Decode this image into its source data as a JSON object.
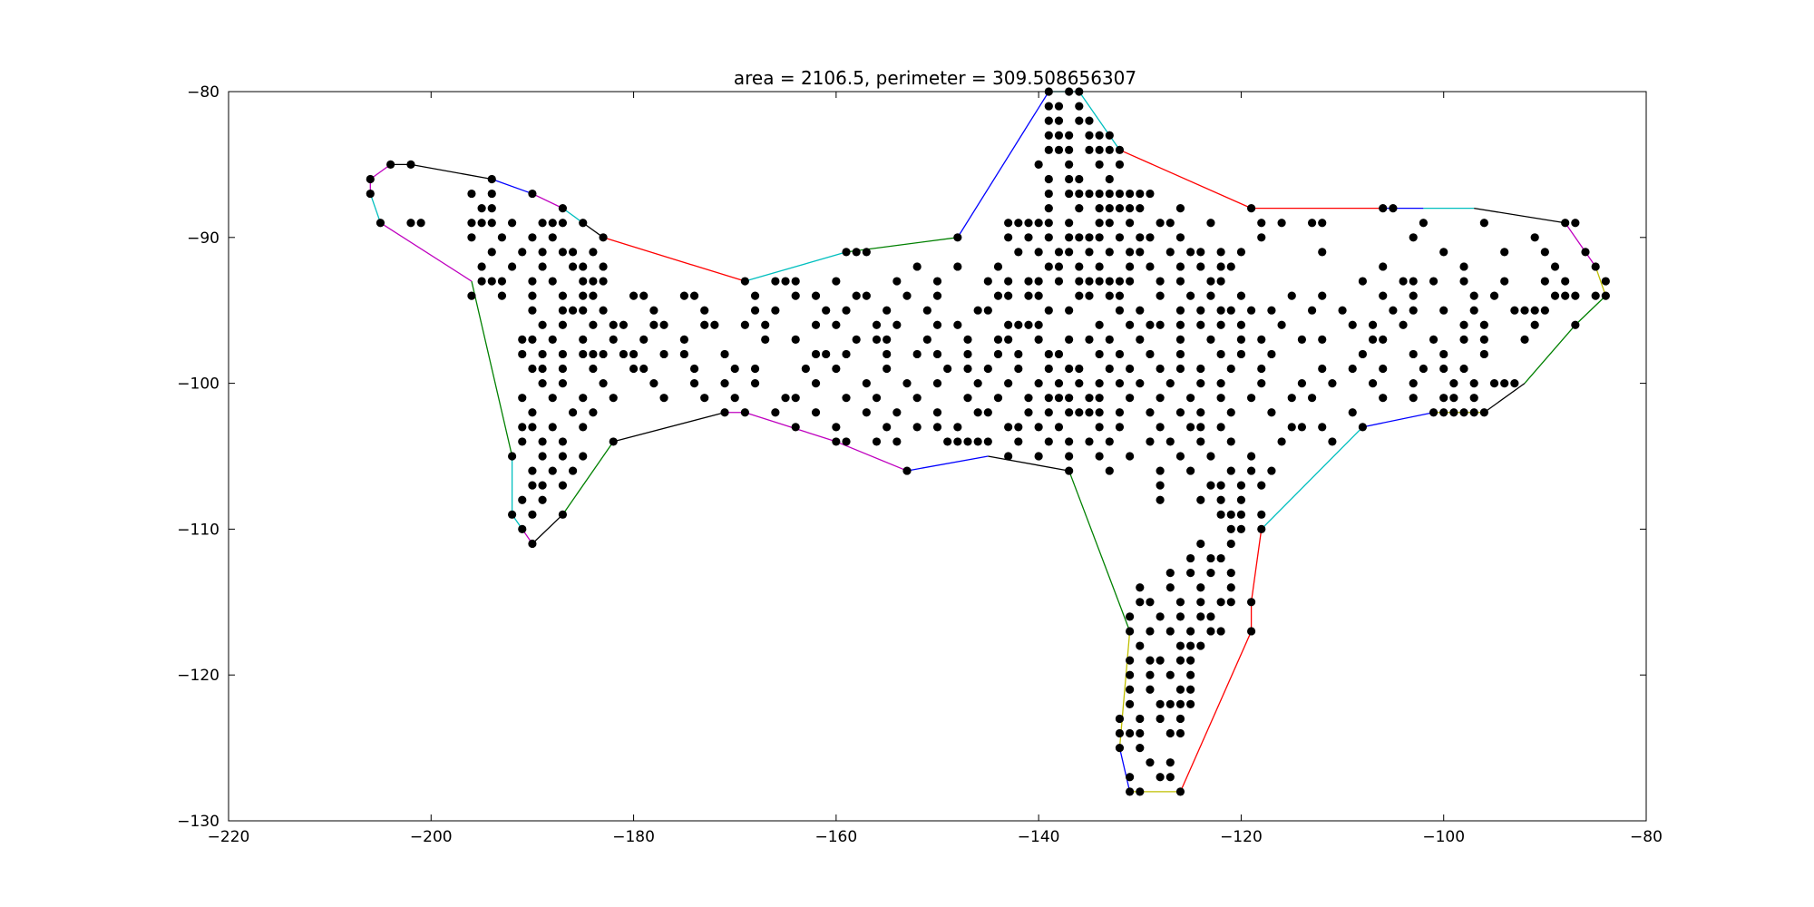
{
  "chart_data": {
    "type": "scatter",
    "title": "area = 2106.5, perimeter = 309.508656307",
    "xlabel": "",
    "ylabel": "",
    "xlim": [
      -220,
      -80
    ],
    "ylim": [
      -130,
      -80
    ],
    "x_ticks": [
      -220,
      -200,
      -180,
      -160,
      -140,
      -120,
      -100,
      -80
    ],
    "y_ticks": [
      -80,
      -90,
      -100,
      -110,
      -120,
      -130
    ],
    "x_tick_labels": [
      "−220",
      "−200",
      "−180",
      "−160",
      "−140",
      "−120",
      "−100",
      "−80"
    ],
    "y_tick_labels": [
      "−80",
      "−90",
      "−100",
      "−110",
      "−120",
      "−130"
    ],
    "grid": false,
    "hull": {
      "points": [
        [
          -204,
          -85
        ],
        [
          -202,
          -85
        ],
        [
          -194,
          -86
        ],
        [
          -190,
          -87
        ],
        [
          -187,
          -88
        ],
        [
          -185,
          -89
        ],
        [
          -183,
          -90
        ],
        [
          -169,
          -93
        ],
        [
          -159,
          -91
        ],
        [
          -148,
          -90
        ],
        [
          -139,
          -80
        ],
        [
          -136,
          -80
        ],
        [
          -132,
          -84
        ],
        [
          -119,
          -88
        ],
        [
          -106,
          -88
        ],
        [
          -102,
          -88
        ],
        [
          -97,
          -88
        ],
        [
          -88,
          -89
        ],
        [
          -85,
          -92
        ],
        [
          -84,
          -94
        ],
        [
          -87,
          -96
        ],
        [
          -92,
          -100
        ],
        [
          -96,
          -102
        ],
        [
          -101,
          -102
        ],
        [
          -108,
          -103
        ],
        [
          -118,
          -110
        ],
        [
          -119,
          -115
        ],
        [
          -119,
          -117
        ],
        [
          -126,
          -128
        ],
        [
          -130,
          -128
        ],
        [
          -131,
          -128
        ],
        [
          -132,
          -125
        ],
        [
          -131,
          -117
        ],
        [
          -137,
          -106
        ],
        [
          -145,
          -105
        ],
        [
          -153,
          -106
        ],
        [
          -160,
          -104
        ],
        [
          -169,
          -102
        ],
        [
          -171,
          -102
        ],
        [
          -182,
          -104
        ],
        [
          -187,
          -109
        ],
        [
          -190,
          -111
        ],
        [
          -191,
          -110
        ],
        [
          -192,
          -109
        ],
        [
          -192,
          -105
        ],
        [
          -196,
          -93
        ],
        [
          -205,
          -89
        ],
        [
          -206,
          -87
        ],
        [
          -206,
          -86
        ],
        [
          -204,
          -85
        ]
      ],
      "colors": [
        "#000000",
        "#000000",
        "#0000ff",
        "#bf00bf",
        "#00bfbf",
        "#000000",
        "#ff0000",
        "#00bfbf",
        "#008000",
        "#0000ff",
        "#00bfbf",
        "#00bfbf",
        "#ff0000",
        "#ff0000",
        "#0000ff",
        "#00bfbf",
        "#000000",
        "#bf00bf",
        "#bfbf00",
        "#008000",
        "#008000",
        "#000000",
        "#bfbf00",
        "#0000ff",
        "#00bfbf",
        "#ff0000",
        "#ff0000",
        "#ff0000",
        "#bfbf00",
        "#bfbf00",
        "#0000ff",
        "#bfbf00",
        "#008000",
        "#000000",
        "#0000ff",
        "#bf00bf",
        "#bf00bf",
        "#bf00bf",
        "#000000",
        "#008000",
        "#000000",
        "#bf00bf",
        "#00bfbf",
        "#00bfbf",
        "#008000",
        "#bf00bf",
        "#00bfbf",
        "#bf00bf",
        "#bf00bf"
      ]
    },
    "points_by_row": [
      {
        "y": -80,
        "x": [
          -139,
          -137,
          -136
        ]
      },
      {
        "y": -81,
        "x": [
          -139,
          -138,
          -136
        ]
      },
      {
        "y": -82,
        "x": [
          -139,
          -138,
          -136,
          -135
        ]
      },
      {
        "y": -83,
        "x": [
          -139,
          -138,
          -137,
          -135,
          -134,
          -133
        ]
      },
      {
        "y": -84,
        "x": [
          -139,
          -138,
          -137,
          -135,
          -134,
          -133,
          -132
        ]
      },
      {
        "y": -85,
        "x": [
          -204,
          -202,
          -140,
          -137,
          -134,
          -132
        ]
      },
      {
        "y": -86,
        "x": [
          -206,
          -194,
          -139,
          -137,
          -136,
          -133
        ]
      },
      {
        "y": -87,
        "x": [
          -206,
          -196,
          -194,
          -190,
          -139,
          -137,
          -136,
          -135,
          -134,
          -133,
          -132,
          -131,
          -130,
          -129
        ]
      },
      {
        "y": -88,
        "x": [
          -195,
          -194,
          -187,
          -139,
          -136,
          -134,
          -133,
          -132,
          -131,
          -130,
          -126,
          -119,
          -106,
          -105
        ]
      },
      {
        "y": -89,
        "x": [
          -205,
          -202,
          -201,
          -196,
          -195,
          -194,
          -192,
          -189,
          -188,
          -187,
          -185,
          -143,
          -142,
          -141,
          -140,
          -139,
          -137,
          -134,
          -133,
          -131,
          -128,
          -127,
          -123,
          -118,
          -116,
          -113,
          -112,
          -102,
          -96,
          -88,
          -87
        ]
      },
      {
        "y": -90,
        "x": [
          -196,
          -193,
          -190,
          -188,
          -183,
          -148,
          -143,
          -141,
          -139,
          -137,
          -136,
          -135,
          -134,
          -132,
          -130,
          -129,
          -126,
          -118,
          -103,
          -91
        ]
      },
      {
        "y": -91,
        "x": [
          -194,
          -191,
          -189,
          -187,
          -186,
          -184,
          -159,
          -158,
          -157,
          -142,
          -140,
          -138,
          -137,
          -135,
          -133,
          -131,
          -130,
          -127,
          -125,
          -124,
          -122,
          -120,
          -112,
          -100,
          -94,
          -90,
          -86
        ]
      },
      {
        "y": -92,
        "x": [
          -195,
          -192,
          -189,
          -186,
          -185,
          -183,
          -152,
          -148,
          -144,
          -139,
          -138,
          -136,
          -134,
          -131,
          -129,
          -126,
          -124,
          -122,
          -121,
          -106,
          -98,
          -89,
          -85
        ]
      },
      {
        "y": -93,
        "x": [
          -195,
          -194,
          -193,
          -190,
          -188,
          -185,
          -184,
          -183,
          -169,
          -166,
          -165,
          -164,
          -160,
          -154,
          -150,
          -145,
          -143,
          -141,
          -140,
          -138,
          -136,
          -135,
          -134,
          -133,
          -132,
          -131,
          -128,
          -126,
          -123,
          -122,
          -108,
          -104,
          -103,
          -101,
          -98,
          -94,
          -90,
          -88,
          -84
        ]
      },
      {
        "y": -94,
        "x": [
          -196,
          -193,
          -190,
          -187,
          -185,
          -184,
          -180,
          -179,
          -175,
          -174,
          -168,
          -164,
          -162,
          -158,
          -157,
          -153,
          -150,
          -144,
          -143,
          -141,
          -140,
          -136,
          -135,
          -133,
          -132,
          -128,
          -125,
          -123,
          -120,
          -115,
          -112,
          -106,
          -103,
          -97,
          -95,
          -89,
          -88,
          -87,
          -85,
          -84
        ]
      },
      {
        "y": -95,
        "x": [
          -190,
          -187,
          -186,
          -185,
          -183,
          -178,
          -173,
          -168,
          -166,
          -161,
          -159,
          -155,
          -151,
          -146,
          -145,
          -139,
          -137,
          -132,
          -130,
          -126,
          -124,
          -122,
          -121,
          -119,
          -117,
          -113,
          -110,
          -105,
          -103,
          -100,
          -97,
          -93,
          -92,
          -91,
          -90
        ]
      },
      {
        "y": -96,
        "x": [
          -189,
          -187,
          -184,
          -182,
          -181,
          -178,
          -177,
          -173,
          -172,
          -169,
          -167,
          -162,
          -160,
          -156,
          -154,
          -150,
          -148,
          -143,
          -142,
          -141,
          -140,
          -134,
          -131,
          -129,
          -128,
          -126,
          -124,
          -122,
          -120,
          -116,
          -109,
          -107,
          -104,
          -98,
          -96,
          -91,
          -87
        ]
      },
      {
        "y": -97,
        "x": [
          -191,
          -190,
          -188,
          -185,
          -182,
          -179,
          -175,
          -167,
          -164,
          -158,
          -156,
          -155,
          -151,
          -147,
          -144,
          -143,
          -140,
          -137,
          -135,
          -133,
          -130,
          -126,
          -123,
          -120,
          -118,
          -114,
          -112,
          -107,
          -106,
          -101,
          -98,
          -96,
          -92
        ]
      },
      {
        "y": -98,
        "x": [
          -191,
          -189,
          -187,
          -185,
          -184,
          -183,
          -181,
          -180,
          -177,
          -175,
          -171,
          -162,
          -161,
          -159,
          -155,
          -152,
          -150,
          -147,
          -144,
          -142,
          -139,
          -138,
          -134,
          -132,
          -129,
          -126,
          -122,
          -120,
          -117,
          -108,
          -103,
          -100,
          -96
        ]
      },
      {
        "y": -99,
        "x": [
          -190,
          -189,
          -187,
          -184,
          -180,
          -179,
          -174,
          -170,
          -168,
          -163,
          -160,
          -155,
          -149,
          -147,
          -145,
          -142,
          -139,
          -137,
          -136,
          -133,
          -131,
          -128,
          -126,
          -124,
          -121,
          -118,
          -112,
          -109,
          -106,
          -102,
          -100,
          -98
        ]
      },
      {
        "y": -100,
        "x": [
          -189,
          -187,
          -183,
          -178,
          -174,
          -171,
          -168,
          -162,
          -157,
          -153,
          -150,
          -146,
          -143,
          -140,
          -138,
          -136,
          -134,
          -132,
          -130,
          -127,
          -124,
          -122,
          -118,
          -114,
          -111,
          -107,
          -103,
          -99,
          -97,
          -95,
          -94,
          -93
        ]
      },
      {
        "y": -101,
        "x": [
          -191,
          -188,
          -185,
          -182,
          -177,
          -173,
          -170,
          -165,
          -164,
          -159,
          -156,
          -152,
          -147,
          -144,
          -141,
          -139,
          -138,
          -137,
          -135,
          -134,
          -131,
          -128,
          -125,
          -122,
          -119,
          -115,
          -113,
          -106,
          -103,
          -100,
          -99,
          -97
        ]
      },
      {
        "y": -102,
        "x": [
          -190,
          -186,
          -184,
          -171,
          -169,
          -166,
          -162,
          -157,
          -154,
          -150,
          -146,
          -145,
          -141,
          -139,
          -137,
          -136,
          -135,
          -134,
          -132,
          -129,
          -126,
          -124,
          -121,
          -117,
          -109,
          -101,
          -100,
          -99,
          -98,
          -97,
          -96
        ]
      },
      {
        "y": -103,
        "x": [
          -191,
          -190,
          -188,
          -185,
          -164,
          -160,
          -155,
          -152,
          -150,
          -148,
          -143,
          -142,
          -140,
          -138,
          -134,
          -132,
          -128,
          -125,
          -124,
          -122,
          -115,
          -114,
          -112,
          -108
        ]
      },
      {
        "y": -104,
        "x": [
          -191,
          -189,
          -187,
          -182,
          -160,
          -159,
          -156,
          -154,
          -149,
          -148,
          -147,
          -146,
          -145,
          -142,
          -139,
          -137,
          -135,
          -133,
          -129,
          -127,
          -124,
          -121,
          -116,
          -111
        ]
      },
      {
        "y": -105,
        "x": [
          -192,
          -189,
          -187,
          -185,
          -143,
          -140,
          -137,
          -134,
          -131,
          -126,
          -123,
          -119
        ]
      },
      {
        "y": -106,
        "x": [
          -190,
          -188,
          -186,
          -153,
          -137,
          -133,
          -128,
          -125,
          -121,
          -119,
          -117
        ]
      },
      {
        "y": -107,
        "x": [
          -190,
          -189,
          -187,
          -128,
          -123,
          -122,
          -120,
          -118
        ]
      },
      {
        "y": -108,
        "x": [
          -191,
          -189,
          -128,
          -124,
          -122,
          -120
        ]
      },
      {
        "y": -109,
        "x": [
          -192,
          -190,
          -187,
          -122,
          -121,
          -120,
          -118
        ]
      },
      {
        "y": -110,
        "x": [
          -191,
          -121,
          -120,
          -118
        ]
      },
      {
        "y": -111,
        "x": [
          -190,
          -124,
          -121
        ]
      },
      {
        "y": -112,
        "x": [
          -125,
          -123,
          -122
        ]
      },
      {
        "y": -113,
        "x": [
          -127,
          -125,
          -123,
          -121
        ]
      },
      {
        "y": -114,
        "x": [
          -130,
          -127,
          -124,
          -121
        ]
      },
      {
        "y": -115,
        "x": [
          -130,
          -129,
          -126,
          -124,
          -122,
          -121,
          -119
        ]
      },
      {
        "y": -116,
        "x": [
          -131,
          -128,
          -126,
          -124,
          -123
        ]
      },
      {
        "y": -117,
        "x": [
          -131,
          -129,
          -127,
          -125,
          -123,
          -122,
          -119
        ]
      },
      {
        "y": -118,
        "x": [
          -130,
          -126,
          -125,
          -124
        ]
      },
      {
        "y": -119,
        "x": [
          -131,
          -129,
          -128,
          -126,
          -125
        ]
      },
      {
        "y": -120,
        "x": [
          -131,
          -129,
          -127,
          -125
        ]
      },
      {
        "y": -121,
        "x": [
          -131,
          -129,
          -126,
          -125
        ]
      },
      {
        "y": -122,
        "x": [
          -131,
          -128,
          -127,
          -126,
          -125
        ]
      },
      {
        "y": -123,
        "x": [
          -132,
          -130,
          -128,
          -126
        ]
      },
      {
        "y": -124,
        "x": [
          -132,
          -131,
          -130,
          -127,
          -126
        ]
      },
      {
        "y": -125,
        "x": [
          -132,
          -130
        ]
      },
      {
        "y": -126,
        "x": [
          -129,
          -127
        ]
      },
      {
        "y": -127,
        "x": [
          -131,
          -128,
          -127
        ]
      },
      {
        "y": -128,
        "x": [
          -131,
          -130,
          -126
        ]
      }
    ]
  }
}
